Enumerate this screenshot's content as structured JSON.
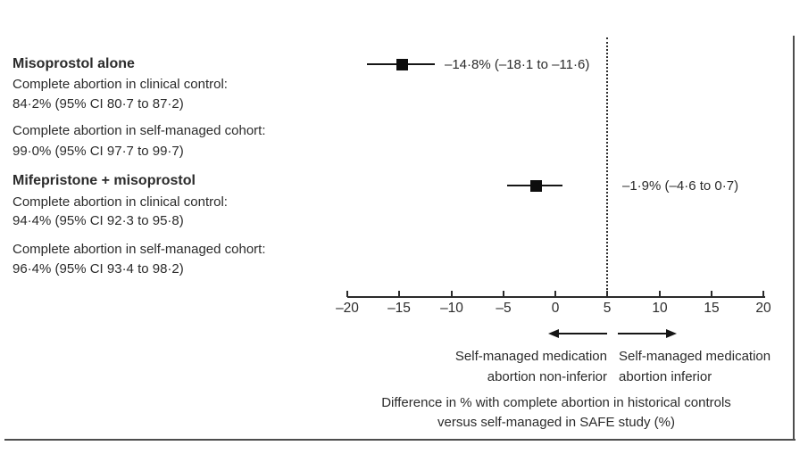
{
  "groups": [
    {
      "title": "Misoprostol alone",
      "control_label": "Complete abortion in clinical control:",
      "control_value": "84·2% (95% CI 80·7 to 87·2)",
      "cohort_label": "Complete abortion in self-managed cohort:",
      "cohort_value": "99·0% (95% CI 97·7 to 99·7)"
    },
    {
      "title": "Mifepristone + misoprostol",
      "control_label": "Complete abortion in clinical control:",
      "control_value": "94·4% (95% CI 92·3 to 95·8)",
      "cohort_label": "Complete abortion in self-managed cohort:",
      "cohort_value": "96·4% (95% CI 93·4 to 98·2)"
    }
  ],
  "chart_data": {
    "type": "scatter",
    "variant": "forest-plot",
    "series": [
      {
        "name": "Misoprostol alone",
        "point": -14.8,
        "ci_low": -18.1,
        "ci_high": -11.6,
        "label": "–14·8% (–18·1 to –11·6)"
      },
      {
        "name": "Mifepristone + misoprostol",
        "point": -1.9,
        "ci_low": -4.6,
        "ci_high": 0.7,
        "label": "–1·9% (–4·6 to 0·7)"
      }
    ],
    "xlim": [
      -20,
      20
    ],
    "tick_values": [
      -20,
      -15,
      -10,
      -5,
      0,
      5,
      10,
      15,
      20
    ],
    "tick_labels": [
      "–20",
      "–15",
      "–10",
      "–5",
      "0",
      "5",
      "10",
      "15",
      "20"
    ],
    "reference_line_x": 5,
    "grid": false,
    "legend": "none",
    "xlabel_line1": "Difference in % with complete abortion in historical controls",
    "xlabel_line2": "versus self-managed in SAFE study (%)",
    "arrow_left_label_line1": "Self-managed medication",
    "arrow_left_label_line2": "abortion non-inferior",
    "arrow_right_label_line1": "Self-managed medication",
    "arrow_right_label_line2": "abortion inferior"
  },
  "colors": {
    "ink": "#2b2b2b",
    "marker": "#0d0d0d",
    "border": "#4d4d4d"
  }
}
